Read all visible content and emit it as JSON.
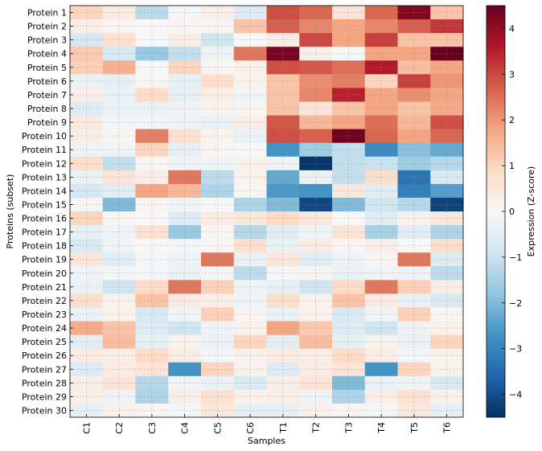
{
  "chart_data": {
    "type": "heatmap",
    "title": "",
    "xlabel": "Samples",
    "ylabel": "Proteins (subset)",
    "colorbar_label": "Expression (Z-score)",
    "colormap": "RdBu_r",
    "vmin": -4.5,
    "vmax": 4.5,
    "colorbar_ticks": [
      4,
      3,
      2,
      1,
      0,
      -1,
      -2,
      -3,
      -4
    ],
    "colorbar_tick_labels": [
      "4",
      "3",
      "2",
      "1",
      "0",
      "−1",
      "−2",
      "−3",
      "−4"
    ],
    "grid": true,
    "x": [
      "C1",
      "C2",
      "C3",
      "C4",
      "C5",
      "C6",
      "T1",
      "T2",
      "T3",
      "T4",
      "T5",
      "T6"
    ],
    "y": [
      "Protein 1",
      "Protein 2",
      "Protein 3",
      "Protein 4",
      "Protein 5",
      "Protein 6",
      "Protein 7",
      "Protein 8",
      "Protein 9",
      "Protein 10",
      "Protein 11",
      "Protein 12",
      "Protein 13",
      "Protein 14",
      "Protein 15",
      "Protein 16",
      "Protein 17",
      "Protein 18",
      "Protein 19",
      "Protein 20",
      "Protein 21",
      "Protein 22",
      "Protein 23",
      "Protein 24",
      "Protein 25",
      "Protein 26",
      "Protein 27",
      "Protein 28",
      "Protein 29",
      "Protein 30"
    ],
    "values": [
      [
        1.0,
        0.4,
        -1.2,
        -0.1,
        0.3,
        -0.6,
        2.9,
        2.6,
        0.6,
        2.6,
        4.2,
        1.3
      ],
      [
        0.3,
        0.1,
        0.0,
        0.1,
        0.1,
        1.3,
        2.7,
        2.2,
        1.8,
        2.2,
        2.7,
        3.2
      ],
      [
        -0.8,
        0.7,
        0.0,
        0.3,
        -0.9,
        0.0,
        0.3,
        3.0,
        1.8,
        3.1,
        1.3,
        1.3
      ],
      [
        1.2,
        -0.7,
        -1.7,
        -1.1,
        -0.2,
        2.4,
        4.3,
        0.3,
        -0.1,
        1.8,
        1.8,
        4.5
      ],
      [
        1.1,
        1.6,
        0.0,
        1.0,
        0.1,
        0.2,
        2.9,
        2.8,
        2.5,
        3.6,
        1.4,
        1.8
      ],
      [
        -0.3,
        -0.4,
        0.1,
        -0.4,
        0.8,
        0.2,
        1.3,
        2.1,
        2.3,
        1.0,
        3.1,
        2.0
      ],
      [
        0.3,
        -0.3,
        0.9,
        -0.4,
        0.3,
        -0.2,
        1.3,
        2.2,
        3.5,
        1.8,
        2.1,
        1.8
      ],
      [
        -0.6,
        -0.3,
        -0.3,
        -0.2,
        0.2,
        0.1,
        1.3,
        0.6,
        1.3,
        1.8,
        1.3,
        1.7
      ],
      [
        0.4,
        -0.1,
        -0.1,
        -0.2,
        -0.3,
        0.3,
        2.8,
        1.5,
        1.8,
        2.5,
        1.5,
        2.9
      ],
      [
        0.3,
        0.1,
        2.3,
        0.7,
        0.2,
        -0.3,
        2.9,
        2.7,
        4.4,
        2.6,
        1.8,
        2.6
      ],
      [
        -0.2,
        -0.2,
        1.0,
        -0.4,
        0.1,
        0.0,
        -2.7,
        -1.6,
        -1.1,
        -2.9,
        -1.9,
        -2.3
      ],
      [
        0.8,
        -1.1,
        0.1,
        -0.2,
        -0.2,
        0.2,
        -0.2,
        -4.4,
        -1.1,
        -1.0,
        -1.6,
        -1.3
      ],
      [
        -0.3,
        0.6,
        0.3,
        2.4,
        -1.2,
        0.2,
        -2.3,
        -0.3,
        -1.1,
        0.8,
        -3.3,
        -0.7
      ],
      [
        -0.8,
        -0.5,
        1.8,
        1.5,
        -1.4,
        0.1,
        -2.6,
        -2.7,
        0.5,
        -0.5,
        -3.1,
        -2.5
      ],
      [
        -0.1,
        -2.0,
        0.1,
        -0.2,
        0.0,
        -1.4,
        -2.0,
        -4.1,
        -2.0,
        -0.9,
        -1.3,
        -4.2
      ],
      [
        1.0,
        0.1,
        0.0,
        -0.6,
        0.4,
        0.5,
        0.9,
        0.5,
        0.0,
        -0.5,
        0.2,
        0.5
      ],
      [
        -0.4,
        -0.2,
        0.7,
        -1.7,
        0.1,
        -1.3,
        -0.5,
        -0.2,
        0.6,
        -1.5,
        -0.5,
        -1.4
      ],
      [
        -0.7,
        -0.2,
        0.0,
        -0.1,
        0.1,
        0.8,
        -0.3,
        0.4,
        0.1,
        0.3,
        0.0,
        0.8
      ],
      [
        0.5,
        -0.5,
        -0.1,
        -0.2,
        2.4,
        -0.3,
        0.5,
        -0.5,
        -0.2,
        0.1,
        2.4,
        -0.6
      ],
      [
        -0.2,
        -0.1,
        -0.1,
        -0.3,
        -0.1,
        -1.2,
        -0.1,
        0.1,
        -0.3,
        -0.2,
        -0.2,
        -1.2
      ],
      [
        -0.3,
        -0.9,
        0.9,
        2.4,
        1.1,
        -0.2,
        -0.4,
        -0.9,
        0.9,
        2.4,
        1.1,
        0.3
      ],
      [
        0.8,
        0.2,
        1.3,
        0.4,
        0.3,
        -0.2,
        0.8,
        0.2,
        1.3,
        0.4,
        -0.3,
        -0.7
      ],
      [
        -0.3,
        0.2,
        -0.7,
        -0.2,
        1.1,
        0.1,
        -0.3,
        0.2,
        -0.7,
        -0.2,
        1.1,
        0.1
      ],
      [
        1.7,
        1.3,
        -0.6,
        -0.9,
        -0.2,
        0.2,
        1.8,
        1.2,
        -0.6,
        -0.9,
        -0.2,
        0.2
      ],
      [
        -0.5,
        1.4,
        -0.4,
        0.2,
        -0.3,
        1.0,
        -0.5,
        1.4,
        -0.4,
        0.2,
        -0.3,
        1.0
      ],
      [
        0.4,
        0.3,
        0.9,
        0.3,
        -0.1,
        0.2,
        0.4,
        0.3,
        0.9,
        0.3,
        -0.1,
        0.2
      ],
      [
        -0.6,
        0.4,
        0.6,
        -2.7,
        1.0,
        0.2,
        -0.6,
        0.4,
        0.6,
        -2.7,
        1.0,
        0.2
      ],
      [
        0.3,
        0.6,
        -1.3,
        -0.2,
        -0.3,
        -0.7,
        0.3,
        0.6,
        -2.0,
        -0.3,
        -0.2,
        -0.7
      ],
      [
        0.3,
        -0.2,
        -1.4,
        0.3,
        0.7,
        0.2,
        0.3,
        -0.2,
        -1.4,
        0.3,
        0.7,
        0.2
      ],
      [
        -0.4,
        0.2,
        0.1,
        -0.1,
        0.5,
        -0.4,
        -0.4,
        0.2,
        0.1,
        -0.1,
        0.5,
        -0.4
      ]
    ]
  }
}
